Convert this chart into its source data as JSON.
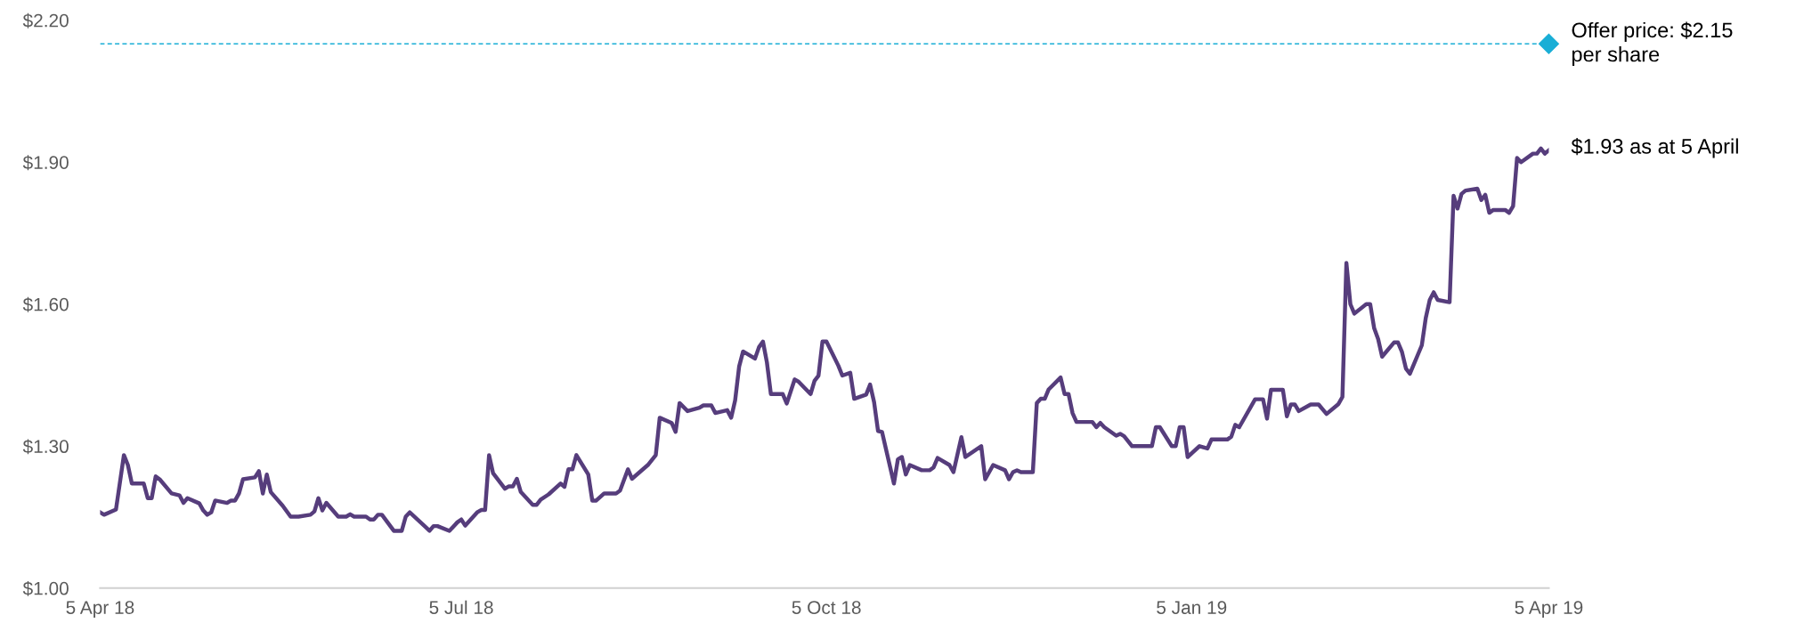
{
  "chart_data": {
    "type": "line",
    "x": [
      "2018-04-05",
      "2018-04-06",
      "2018-04-09",
      "2018-04-11",
      "2018-04-12",
      "2018-04-13",
      "2018-04-16",
      "2018-04-17",
      "2018-04-18",
      "2018-04-19",
      "2018-04-20",
      "2018-04-23",
      "2018-04-25",
      "2018-04-26",
      "2018-04-27",
      "2018-04-30",
      "2018-05-01",
      "2018-05-02",
      "2018-05-03",
      "2018-05-04",
      "2018-05-07",
      "2018-05-08",
      "2018-05-09",
      "2018-05-10",
      "2018-05-11",
      "2018-05-14",
      "2018-05-15",
      "2018-05-16",
      "2018-05-17",
      "2018-05-18",
      "2018-05-21",
      "2018-05-23",
      "2018-05-25",
      "2018-05-28",
      "2018-05-29",
      "2018-05-30",
      "2018-05-31",
      "2018-06-01",
      "2018-06-04",
      "2018-06-06",
      "2018-06-07",
      "2018-06-08",
      "2018-06-11",
      "2018-06-12",
      "2018-06-13",
      "2018-06-14",
      "2018-06-15",
      "2018-06-18",
      "2018-06-20",
      "2018-06-21",
      "2018-06-22",
      "2018-06-26",
      "2018-06-27",
      "2018-06-28",
      "2018-06-29",
      "2018-07-02",
      "2018-07-04",
      "2018-07-05",
      "2018-07-06",
      "2018-07-09",
      "2018-07-10",
      "2018-07-11",
      "2018-07-12",
      "2018-07-13",
      "2018-07-16",
      "2018-07-17",
      "2018-07-18",
      "2018-07-19",
      "2018-07-20",
      "2018-07-23",
      "2018-07-24",
      "2018-07-25",
      "2018-07-27",
      "2018-07-30",
      "2018-07-31",
      "2018-08-01",
      "2018-08-02",
      "2018-08-03",
      "2018-08-06",
      "2018-08-07",
      "2018-08-08",
      "2018-08-10",
      "2018-08-13",
      "2018-08-14",
      "2018-08-16",
      "2018-08-17",
      "2018-08-21",
      "2018-08-23",
      "2018-08-24",
      "2018-08-27",
      "2018-08-28",
      "2018-08-29",
      "2018-08-31",
      "2018-09-03",
      "2018-09-04",
      "2018-09-06",
      "2018-09-07",
      "2018-09-10",
      "2018-09-11",
      "2018-09-12",
      "2018-09-13",
      "2018-09-14",
      "2018-09-17",
      "2018-09-18",
      "2018-09-19",
      "2018-09-20",
      "2018-09-21",
      "2018-09-24",
      "2018-09-25",
      "2018-09-27",
      "2018-09-28",
      "2018-10-01",
      "2018-10-02",
      "2018-10-03",
      "2018-10-04",
      "2018-10-05",
      "2018-10-08",
      "2018-10-09",
      "2018-10-11",
      "2018-10-12",
      "2018-10-15",
      "2018-10-16",
      "2018-10-17",
      "2018-10-18",
      "2018-10-19",
      "2018-10-22",
      "2018-10-23",
      "2018-10-24",
      "2018-10-25",
      "2018-10-26",
      "2018-10-29",
      "2018-10-31",
      "2018-11-01",
      "2018-11-02",
      "2018-11-05",
      "2018-11-06",
      "2018-11-08",
      "2018-11-09",
      "2018-11-13",
      "2018-11-14",
      "2018-11-16",
      "2018-11-19",
      "2018-11-20",
      "2018-11-21",
      "2018-11-22",
      "2018-11-23",
      "2018-11-26",
      "2018-11-27",
      "2018-11-28",
      "2018-11-29",
      "2018-11-30",
      "2018-12-03",
      "2018-12-04",
      "2018-12-05",
      "2018-12-06",
      "2018-12-07",
      "2018-12-11",
      "2018-12-12",
      "2018-12-13",
      "2018-12-14",
      "2018-12-17",
      "2018-12-18",
      "2018-12-19",
      "2018-12-21",
      "2018-12-26",
      "2018-12-27",
      "2018-12-28",
      "2018-12-31",
      "2019-01-01",
      "2019-01-02",
      "2019-01-03",
      "2019-01-04",
      "2019-01-07",
      "2019-01-09",
      "2019-01-10",
      "2019-01-14",
      "2019-01-15",
      "2019-01-16",
      "2019-01-17",
      "2019-01-21",
      "2019-01-23",
      "2019-01-24",
      "2019-01-25",
      "2019-01-28",
      "2019-01-29",
      "2019-01-30",
      "2019-01-31",
      "2019-02-01",
      "2019-02-04",
      "2019-02-06",
      "2019-02-08",
      "2019-02-11",
      "2019-02-12",
      "2019-02-13",
      "2019-02-14",
      "2019-02-15",
      "2019-02-18",
      "2019-02-19",
      "2019-02-20",
      "2019-02-21",
      "2019-02-22",
      "2019-02-25",
      "2019-02-26",
      "2019-02-27",
      "2019-02-28",
      "2019-03-01",
      "2019-03-04",
      "2019-03-05",
      "2019-03-06",
      "2019-03-07",
      "2019-03-08",
      "2019-03-11",
      "2019-03-12",
      "2019-03-13",
      "2019-03-14",
      "2019-03-15",
      "2019-03-18",
      "2019-03-19",
      "2019-03-20",
      "2019-03-21",
      "2019-03-22",
      "2019-03-25",
      "2019-03-26",
      "2019-03-27",
      "2019-03-28",
      "2019-03-29",
      "2019-04-01",
      "2019-04-02",
      "2019-04-03",
      "2019-04-04",
      "2019-04-05"
    ],
    "series": [
      {
        "color": "#563d7c",
        "values": [
          1.16,
          1.155,
          1.166,
          1.281,
          1.26,
          1.221,
          1.221,
          1.19,
          1.19,
          1.236,
          1.23,
          1.2,
          1.196,
          1.18,
          1.19,
          1.179,
          1.164,
          1.155,
          1.16,
          1.185,
          1.18,
          1.185,
          1.185,
          1.2,
          1.23,
          1.234,
          1.247,
          1.2,
          1.24,
          1.203,
          1.174,
          1.151,
          1.151,
          1.155,
          1.162,
          1.19,
          1.164,
          1.18,
          1.151,
          1.151,
          1.156,
          1.151,
          1.151,
          1.145,
          1.145,
          1.155,
          1.155,
          1.121,
          1.121,
          1.151,
          1.16,
          1.129,
          1.121,
          1.131,
          1.131,
          1.121,
          1.139,
          1.145,
          1.132,
          1.16,
          1.165,
          1.165,
          1.281,
          1.243,
          1.21,
          1.215,
          1.215,
          1.231,
          1.203,
          1.176,
          1.176,
          1.187,
          1.198,
          1.221,
          1.214,
          1.251,
          1.251,
          1.281,
          1.24,
          1.185,
          1.185,
          1.2,
          1.2,
          1.206,
          1.251,
          1.231,
          1.26,
          1.281,
          1.36,
          1.349,
          1.33,
          1.391,
          1.374,
          1.381,
          1.386,
          1.386,
          1.37,
          1.376,
          1.36,
          1.397,
          1.468,
          1.5,
          1.485,
          1.509,
          1.521,
          1.477,
          1.41,
          1.41,
          1.39,
          1.441,
          1.436,
          1.41,
          1.438,
          1.449,
          1.521,
          1.521,
          1.47,
          1.449,
          1.455,
          1.4,
          1.409,
          1.43,
          1.393,
          1.332,
          1.33,
          1.221,
          1.272,
          1.277,
          1.24,
          1.26,
          1.249,
          1.249,
          1.255,
          1.275,
          1.26,
          1.245,
          1.319,
          1.277,
          1.3,
          1.23,
          1.26,
          1.249,
          1.23,
          1.245,
          1.249,
          1.245,
          1.245,
          1.391,
          1.4,
          1.4,
          1.42,
          1.445,
          1.41,
          1.41,
          1.37,
          1.351,
          1.351,
          1.34,
          1.349,
          1.34,
          1.322,
          1.326,
          1.321,
          1.3,
          1.3,
          1.34,
          1.34,
          1.3,
          1.3,
          1.34,
          1.34,
          1.277,
          1.3,
          1.295,
          1.314,
          1.314,
          1.32,
          1.345,
          1.34,
          1.399,
          1.399,
          1.358,
          1.419,
          1.419,
          1.363,
          1.388,
          1.388,
          1.374,
          1.388,
          1.388,
          1.368,
          1.389,
          1.404,
          1.687,
          1.6,
          1.58,
          1.6,
          1.6,
          1.549,
          1.526,
          1.489,
          1.519,
          1.519,
          1.499,
          1.464,
          1.453,
          1.513,
          1.571,
          1.609,
          1.625,
          1.609,
          1.604,
          1.829,
          1.802,
          1.833,
          1.84,
          1.844,
          1.82,
          1.831,
          1.793,
          1.799,
          1.799,
          1.793,
          1.807,
          1.909,
          1.9,
          1.918,
          1.918,
          1.929,
          1.918,
          1.925
        ]
      }
    ],
    "xlim": [
      "2018-04-05",
      "2019-04-05"
    ],
    "xticks": [
      {
        "value": "2018-04-05",
        "label": "5 Apr 18"
      },
      {
        "value": "2018-07-05",
        "label": "5 Jul 18"
      },
      {
        "value": "2018-10-05",
        "label": "5 Oct 18"
      },
      {
        "value": "2019-01-05",
        "label": "5 Jan 19"
      },
      {
        "value": "2019-04-05",
        "label": "5 Apr 19"
      }
    ],
    "ylim": [
      1.0,
      2.2
    ],
    "yticks": [
      {
        "value": 1.0,
        "label": "$1.00"
      },
      {
        "value": 1.3,
        "label": "$1.30"
      },
      {
        "value": 1.6,
        "label": "$1.60"
      },
      {
        "value": 1.9,
        "label": "$1.90"
      },
      {
        "value": 2.2,
        "label": "$2.20"
      }
    ],
    "ref_lines": [
      {
        "axis": "y",
        "value": 2.15,
        "label": "Offer price: $2.15\nper share",
        "color": "#1aaed6",
        "line_style": "dashed"
      }
    ],
    "annotations": [
      {
        "text": "$1.93 as at 5 April",
        "x": "2019-04-05",
        "y": 1.93
      }
    ],
    "grid": false,
    "legend": false,
    "marker": "none",
    "line_style": "solid"
  }
}
